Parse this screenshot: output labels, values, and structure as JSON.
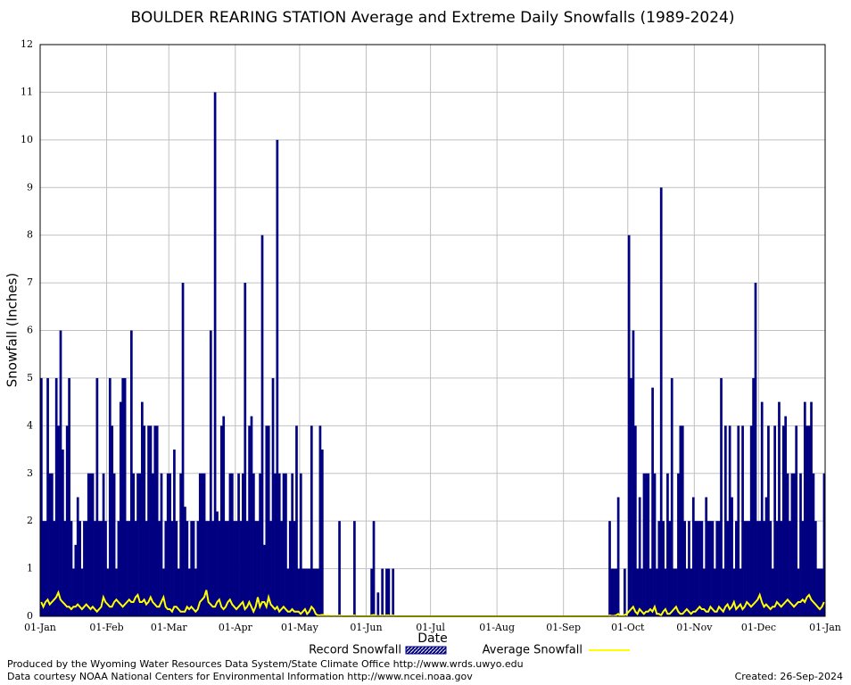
{
  "chart_data": {
    "type": "bar-line",
    "title": "BOULDER REARING STATION Average and Extreme Daily Snowfalls (1989-2024)",
    "x_label": "Date",
    "y_label": "Snowfall (Inches)",
    "footer_left": [
      "Produced by the Wyoming Water Resources Data System/State Climate Office http://www.wrds.uwyo.edu",
      "Data courtesy NOAA National Centers for Environmental Information http://www.ncei.noaa.gov"
    ],
    "footer_right": "Created:  26-Sep-2024",
    "xlim": [
      0,
      366
    ],
    "xticks": [
      {
        "value": 0,
        "label": "01-Jan"
      },
      {
        "value": 31,
        "label": "01-Feb"
      },
      {
        "value": 60,
        "label": "01-Mar"
      },
      {
        "value": 91,
        "label": "01-Apr"
      },
      {
        "value": 121,
        "label": "01-May"
      },
      {
        "value": 152,
        "label": "01-Jun"
      },
      {
        "value": 182,
        "label": "01-Jul"
      },
      {
        "value": 213,
        "label": "01-Aug"
      },
      {
        "value": 244,
        "label": "01-Sep"
      },
      {
        "value": 274,
        "label": "01-Oct"
      },
      {
        "value": 305,
        "label": "01-Nov"
      },
      {
        "value": 335,
        "label": "01-Dec"
      },
      {
        "value": 366,
        "label": "01-Jan"
      }
    ],
    "ylim": [
      0,
      12
    ],
    "yticks": [
      0,
      1,
      2,
      3,
      4,
      5,
      6,
      7,
      8,
      9,
      10,
      11,
      12
    ],
    "grid": true,
    "x": [
      0,
      1,
      2,
      3,
      4,
      5,
      6,
      7,
      8,
      9,
      10,
      11,
      12,
      13,
      14,
      15,
      16,
      17,
      18,
      19,
      20,
      21,
      22,
      23,
      24,
      25,
      26,
      27,
      28,
      29,
      30,
      31,
      32,
      33,
      34,
      35,
      36,
      37,
      38,
      39,
      40,
      41,
      42,
      43,
      44,
      45,
      46,
      47,
      48,
      49,
      50,
      51,
      52,
      53,
      54,
      55,
      56,
      57,
      58,
      59,
      60,
      61,
      62,
      63,
      64,
      65,
      66,
      67,
      68,
      69,
      70,
      71,
      72,
      73,
      74,
      75,
      76,
      77,
      78,
      79,
      80,
      81,
      82,
      83,
      84,
      85,
      86,
      87,
      88,
      89,
      90,
      91,
      92,
      93,
      94,
      95,
      96,
      97,
      98,
      99,
      100,
      101,
      102,
      103,
      104,
      105,
      106,
      107,
      108,
      109,
      110,
      111,
      112,
      113,
      114,
      115,
      116,
      117,
      118,
      119,
      120,
      121,
      122,
      123,
      124,
      125,
      126,
      127,
      128,
      129,
      130,
      131,
      132,
      133,
      134,
      135,
      136,
      137,
      138,
      139,
      140,
      141,
      142,
      143,
      144,
      145,
      146,
      147,
      148,
      149,
      150,
      151,
      152,
      153,
      154,
      155,
      156,
      157,
      158,
      159,
      160,
      161,
      162,
      163,
      164,
      165,
      166,
      167,
      168,
      169,
      170,
      171,
      172,
      173,
      174,
      175,
      176,
      177,
      178,
      179,
      180,
      181,
      182,
      183,
      184,
      185,
      186,
      187,
      188,
      189,
      190,
      191,
      192,
      193,
      194,
      195,
      196,
      197,
      198,
      199,
      200,
      201,
      202,
      203,
      204,
      205,
      206,
      207,
      208,
      209,
      210,
      211,
      212,
      213,
      214,
      215,
      216,
      217,
      218,
      219,
      220,
      221,
      222,
      223,
      224,
      225,
      226,
      227,
      228,
      229,
      230,
      231,
      232,
      233,
      234,
      235,
      236,
      237,
      238,
      239,
      240,
      241,
      242,
      243,
      244,
      245,
      246,
      247,
      248,
      249,
      250,
      251,
      252,
      253,
      254,
      255,
      256,
      257,
      258,
      259,
      260,
      261,
      262,
      263,
      264,
      265,
      266,
      267,
      268,
      269,
      270,
      271,
      272,
      273,
      274,
      275,
      276,
      277,
      278,
      279,
      280,
      281,
      282,
      283,
      284,
      285,
      286,
      287,
      288,
      289,
      290,
      291,
      292,
      293,
      294,
      295,
      296,
      297,
      298,
      299,
      300,
      301,
      302,
      303,
      304,
      305,
      306,
      307,
      308,
      309,
      310,
      311,
      312,
      313,
      314,
      315,
      316,
      317,
      318,
      319,
      320,
      321,
      322,
      323,
      324,
      325,
      326,
      327,
      328,
      329,
      330,
      331,
      332,
      333,
      334,
      335,
      336,
      337,
      338,
      339,
      340,
      341,
      342,
      343,
      344,
      345,
      346,
      347,
      348,
      349,
      350,
      351,
      352,
      353,
      354,
      355,
      356,
      357,
      358,
      359,
      360,
      361,
      362,
      363,
      364,
      365
    ],
    "series": [
      {
        "name": "Record Snowfall",
        "color": "#000080",
        "values": [
          5,
          2,
          2,
          5,
          3,
          3,
          2,
          5,
          4,
          6,
          3.5,
          2,
          4,
          5,
          2,
          1,
          1.5,
          2.5,
          2,
          1,
          2,
          2,
          3,
          3,
          3,
          2,
          5,
          2,
          2,
          3,
          2,
          1,
          5,
          4,
          3,
          1,
          2,
          4.5,
          5,
          5,
          2,
          2,
          6,
          3,
          2,
          3,
          3,
          4.5,
          4,
          2,
          4,
          4,
          3,
          4,
          4,
          2,
          3,
          1,
          2,
          3,
          3,
          2,
          3.5,
          2,
          1,
          3,
          7,
          2.3,
          2,
          1,
          2,
          2,
          1,
          2,
          3,
          3,
          3,
          2,
          2,
          6,
          2,
          11,
          2.2,
          2,
          4,
          4.2,
          2,
          2,
          3,
          3,
          2,
          2,
          3,
          2,
          3,
          7,
          2,
          4,
          4.2,
          3,
          2,
          2,
          3,
          8,
          1.5,
          4,
          4,
          2,
          5,
          3,
          10,
          3,
          2,
          3,
          3,
          1,
          2,
          3,
          2,
          4,
          1,
          3,
          1,
          1,
          1,
          1,
          4,
          1,
          1,
          1,
          4,
          3.5,
          0,
          0,
          0,
          0,
          0,
          0,
          0,
          2,
          0,
          0,
          0,
          0,
          0,
          0,
          2,
          0,
          0,
          0,
          0,
          0,
          0,
          0,
          1,
          2,
          0,
          0.5,
          0,
          1,
          0,
          1,
          1,
          0,
          1,
          0,
          0,
          0,
          0,
          0,
          0,
          0,
          0,
          0,
          0,
          0,
          0,
          0,
          0,
          0,
          0,
          0,
          0,
          0,
          0,
          0,
          0,
          0,
          0,
          0,
          0,
          0,
          0,
          0,
          0,
          0,
          0,
          0,
          0,
          0,
          0,
          0,
          0,
          0,
          0,
          0,
          0,
          0,
          0,
          0,
          0,
          0,
          0,
          0,
          0,
          0,
          0,
          0,
          0,
          0,
          0,
          0,
          0,
          0,
          0,
          0,
          0,
          0,
          0,
          0,
          0,
          0,
          0,
          0,
          0,
          0,
          0,
          0,
          0,
          0,
          0,
          0,
          0,
          0,
          0,
          0,
          0,
          0,
          0,
          0,
          0,
          0,
          0,
          0,
          0,
          0,
          0,
          0,
          0,
          0,
          0,
          0,
          0,
          0,
          0,
          2,
          1,
          1,
          1,
          2.5,
          0,
          0,
          1,
          0,
          8,
          5,
          6,
          4,
          1,
          2.5,
          1,
          3,
          3,
          3,
          1,
          4.8,
          3,
          1,
          2,
          9,
          2,
          1,
          3,
          2,
          5,
          1,
          1,
          3,
          4,
          4,
          2,
          1,
          2,
          1,
          2.5,
          2,
          2,
          2,
          2,
          1,
          2.5,
          2,
          2,
          2,
          1,
          2,
          2,
          5,
          1,
          4,
          2,
          4,
          2.5,
          1,
          2,
          4,
          1,
          4,
          2,
          2,
          2,
          4,
          5,
          7,
          2,
          2,
          4.5,
          2,
          2.5,
          4,
          2,
          1,
          4,
          2,
          4.5,
          2,
          4,
          4.2,
          3,
          2,
          3,
          3,
          4,
          1,
          3,
          2,
          4.5,
          4,
          4,
          4.5,
          3,
          2,
          1,
          1,
          1,
          3
        ]
      },
      {
        "name": "Average Snowfall",
        "color": "#ffff00",
        "values": [
          0.3,
          0.2,
          0.3,
          0.35,
          0.25,
          0.3,
          0.35,
          0.4,
          0.5,
          0.35,
          0.3,
          0.25,
          0.2,
          0.2,
          0.15,
          0.2,
          0.2,
          0.25,
          0.2,
          0.15,
          0.2,
          0.25,
          0.2,
          0.15,
          0.2,
          0.15,
          0.1,
          0.15,
          0.2,
          0.4,
          0.3,
          0.25,
          0.2,
          0.2,
          0.3,
          0.35,
          0.3,
          0.25,
          0.2,
          0.25,
          0.3,
          0.35,
          0.3,
          0.3,
          0.4,
          0.45,
          0.3,
          0.3,
          0.35,
          0.25,
          0.3,
          0.4,
          0.3,
          0.25,
          0.2,
          0.2,
          0.3,
          0.4,
          0.2,
          0.15,
          0.15,
          0.1,
          0.2,
          0.2,
          0.15,
          0.1,
          0.1,
          0.1,
          0.2,
          0.15,
          0.2,
          0.15,
          0.1,
          0.15,
          0.3,
          0.35,
          0.4,
          0.55,
          0.3,
          0.25,
          0.2,
          0.2,
          0.3,
          0.35,
          0.2,
          0.15,
          0.2,
          0.3,
          0.35,
          0.25,
          0.2,
          0.15,
          0.2,
          0.25,
          0.3,
          0.15,
          0.2,
          0.3,
          0.2,
          0.1,
          0.2,
          0.4,
          0.2,
          0.3,
          0.3,
          0.2,
          0.4,
          0.25,
          0.2,
          0.15,
          0.2,
          0.1,
          0.15,
          0.2,
          0.15,
          0.1,
          0.1,
          0.15,
          0.1,
          0.1,
          0.1,
          0.05,
          0.1,
          0.15,
          0.05,
          0.1,
          0.2,
          0.15,
          0.05,
          0.02,
          0.02,
          0.03,
          0.02,
          0.01,
          0.02,
          0,
          0.01,
          0.01,
          0,
          0.02,
          0.01,
          0,
          0,
          0,
          0,
          0.01,
          0.02,
          0,
          0,
          0,
          0,
          0,
          0,
          0,
          0.02,
          0.03,
          0,
          0.01,
          0,
          0.02,
          0,
          0.02,
          0.02,
          0,
          0.02,
          0,
          0,
          0,
          0,
          0,
          0,
          0,
          0,
          0,
          0,
          0,
          0,
          0,
          0,
          0,
          0,
          0,
          0,
          0,
          0,
          0,
          0,
          0,
          0,
          0,
          0,
          0,
          0,
          0,
          0,
          0,
          0,
          0,
          0,
          0,
          0,
          0,
          0,
          0,
          0,
          0,
          0,
          0,
          0,
          0,
          0,
          0,
          0,
          0,
          0,
          0,
          0,
          0,
          0,
          0,
          0,
          0,
          0,
          0,
          0,
          0,
          0,
          0,
          0,
          0,
          0,
          0,
          0,
          0,
          0,
          0,
          0,
          0,
          0,
          0,
          0,
          0,
          0,
          0,
          0,
          0,
          0,
          0,
          0,
          0,
          0,
          0,
          0,
          0,
          0,
          0,
          0,
          0,
          0,
          0,
          0,
          0,
          0,
          0,
          0,
          0.02,
          0.01,
          0.01,
          0.02,
          0.05,
          0,
          0,
          0.03,
          0.05,
          0.1,
          0.15,
          0.2,
          0.1,
          0.05,
          0.15,
          0.1,
          0.05,
          0.1,
          0.1,
          0.15,
          0.1,
          0.2,
          0.05,
          0.05,
          0.02,
          0.1,
          0.15,
          0.05,
          0.05,
          0.1,
          0.15,
          0.2,
          0.1,
          0.05,
          0.05,
          0.1,
          0.15,
          0.1,
          0.05,
          0.1,
          0.1,
          0.15,
          0.2,
          0.15,
          0.15,
          0.1,
          0.1,
          0.2,
          0.15,
          0.1,
          0.1,
          0.2,
          0.15,
          0.1,
          0.2,
          0.25,
          0.15,
          0.2,
          0.3,
          0.15,
          0.2,
          0.25,
          0.15,
          0.2,
          0.3,
          0.25,
          0.2,
          0.25,
          0.3,
          0.35,
          0.45,
          0.3,
          0.2,
          0.25,
          0.2,
          0.15,
          0.2,
          0.2,
          0.3,
          0.25,
          0.2,
          0.25,
          0.3,
          0.35,
          0.3,
          0.25,
          0.2,
          0.25,
          0.3,
          0.3,
          0.35,
          0.3,
          0.4,
          0.45,
          0.35,
          0.3,
          0.25,
          0.2,
          0.15,
          0.2,
          0.3
        ]
      }
    ]
  }
}
